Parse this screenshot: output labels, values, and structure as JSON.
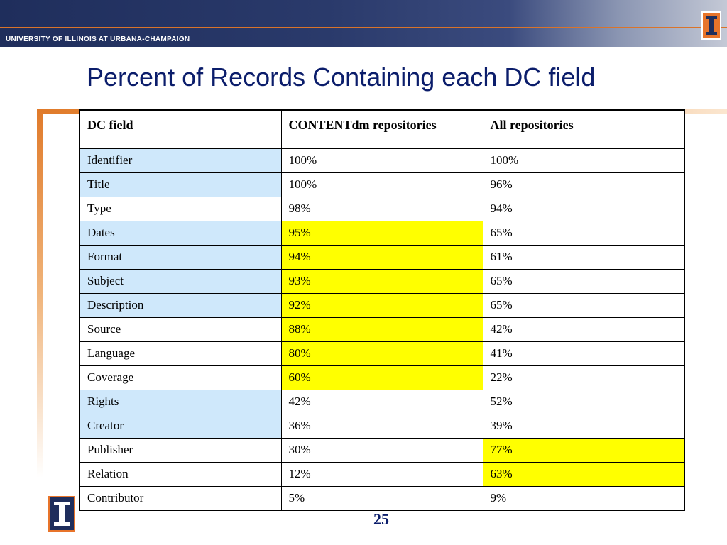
{
  "header": {
    "institution": "UNIVERSITY OF ILLINOIS AT URBANA-CHAMPAIGN"
  },
  "slide": {
    "title": "Percent of Records Containing each DC field",
    "page_number": "25"
  },
  "table": {
    "columns": [
      "DC field",
      "CONTENTdm repositories",
      "All repositories"
    ],
    "rows": [
      {
        "field": "Identifier",
        "contentdm": "100%",
        "all": "100%"
      },
      {
        "field": "Title",
        "contentdm": "100%",
        "all": "96%"
      },
      {
        "field": "Type",
        "contentdm": "98%",
        "all": "94%"
      },
      {
        "field": "Dates",
        "contentdm": "95%",
        "all": "65%"
      },
      {
        "field": "Format",
        "contentdm": "94%",
        "all": "61%"
      },
      {
        "field": "Subject",
        "contentdm": "93%",
        "all": "65%"
      },
      {
        "field": "Description",
        "contentdm": "92%",
        "all": "65%"
      },
      {
        "field": "Source",
        "contentdm": "88%",
        "all": "42%"
      },
      {
        "field": "Language",
        "contentdm": "80%",
        "all": "41%"
      },
      {
        "field": "Coverage",
        "contentdm": "60%",
        "all": "22%"
      },
      {
        "field": "Rights",
        "contentdm": "42%",
        "all": "52%"
      },
      {
        "field": "Creator",
        "contentdm": "36%",
        "all": "39%"
      },
      {
        "field": "Publisher",
        "contentdm": "30%",
        "all": "77%"
      },
      {
        "field": "Relation",
        "contentdm": "12%",
        "all": "63%"
      },
      {
        "field": "Contributor",
        "contentdm": "5%",
        "all": "9%"
      }
    ]
  },
  "colors": {
    "field_highlight": "#cfe8fb",
    "value_highlight": "#ffff00",
    "title": "#0b1d6b",
    "accent": "#e8742a",
    "banner": "#1f2e5c"
  },
  "icons": {
    "header_logo": "illinois-i-logo-icon",
    "footer_logo": "illinois-i-logo-icon"
  }
}
